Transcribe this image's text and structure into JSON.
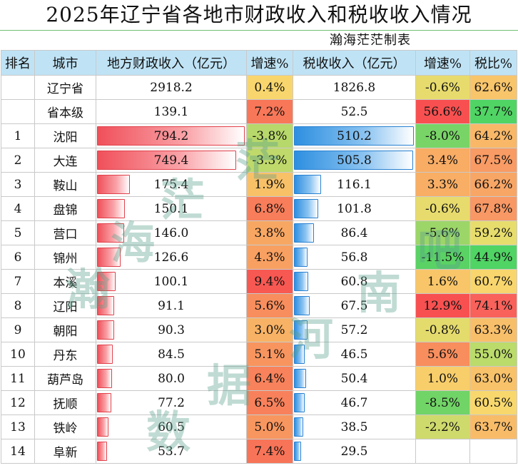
{
  "title": "2025年辽宁省各地市财政收入和税收收入情况",
  "author": "瀚海茫茫制表",
  "headers": [
    "排名",
    "城市",
    "地方财政收入（亿元）",
    "增速%",
    "税收收入（亿元）",
    "增速%",
    "税比%"
  ],
  "rows": [
    {
      "rank": "",
      "city": "辽宁省",
      "revenue": "2918.2",
      "rev_growth": "0.4%",
      "tax": "1826.8",
      "tax_growth": "-0.6%",
      "tax_ratio": "62.6%",
      "bar": false
    },
    {
      "rank": "",
      "city": "省本级",
      "revenue": "139.1",
      "rev_growth": "7.2%",
      "tax": "52.5",
      "tax_growth": "56.6%",
      "tax_ratio": "37.7%",
      "bar": false
    },
    {
      "rank": "1",
      "city": "沈阳",
      "revenue": "794.2",
      "rev_growth": "-3.8%",
      "tax": "510.2",
      "tax_growth": "-8.0%",
      "tax_ratio": "64.2%",
      "bar": true
    },
    {
      "rank": "2",
      "city": "大连",
      "revenue": "749.4",
      "rev_growth": "-3.3%",
      "tax": "505.8",
      "tax_growth": "3.4%",
      "tax_ratio": "67.5%",
      "bar": true
    },
    {
      "rank": "3",
      "city": "鞍山",
      "revenue": "175.4",
      "rev_growth": "1.9%",
      "tax": "116.1",
      "tax_growth": "3.3%",
      "tax_ratio": "66.2%",
      "bar": true
    },
    {
      "rank": "4",
      "city": "盘锦",
      "revenue": "150.1",
      "rev_growth": "6.8%",
      "tax": "101.8",
      "tax_growth": "-0.6%",
      "tax_ratio": "67.8%",
      "bar": true
    },
    {
      "rank": "5",
      "city": "营口",
      "revenue": "146.0",
      "rev_growth": "3.8%",
      "tax": "86.4",
      "tax_growth": "-5.6%",
      "tax_ratio": "59.2%",
      "bar": true
    },
    {
      "rank": "6",
      "city": "锦州",
      "revenue": "126.6",
      "rev_growth": "4.3%",
      "tax": "56.8",
      "tax_growth": "-11.5%",
      "tax_ratio": "44.9%",
      "bar": true
    },
    {
      "rank": "7",
      "city": "本溪",
      "revenue": "100.1",
      "rev_growth": "9.4%",
      "tax": "60.8",
      "tax_growth": "1.6%",
      "tax_ratio": "60.7%",
      "bar": true
    },
    {
      "rank": "8",
      "city": "辽阳",
      "revenue": "91.1",
      "rev_growth": "5.6%",
      "tax": "67.5",
      "tax_growth": "12.9%",
      "tax_ratio": "74.1%",
      "bar": true
    },
    {
      "rank": "9",
      "city": "朝阳",
      "revenue": "90.3",
      "rev_growth": "3.0%",
      "tax": "57.2",
      "tax_growth": "-0.8%",
      "tax_ratio": "63.3%",
      "bar": true
    },
    {
      "rank": "10",
      "city": "丹东",
      "revenue": "84.5",
      "rev_growth": "5.1%",
      "tax": "46.5",
      "tax_growth": "5.6%",
      "tax_ratio": "55.0%",
      "bar": true
    },
    {
      "rank": "11",
      "city": "葫芦岛",
      "revenue": "80.0",
      "rev_growth": "6.4%",
      "tax": "50.4",
      "tax_growth": "1.0%",
      "tax_ratio": "63.0%",
      "bar": true
    },
    {
      "rank": "12",
      "city": "抚顺",
      "revenue": "77.2",
      "rev_growth": "6.5%",
      "tax": "46.7",
      "tax_growth": "-8.5%",
      "tax_ratio": "60.5%",
      "bar": true
    },
    {
      "rank": "13",
      "city": "铁岭",
      "revenue": "60.5",
      "rev_growth": "5.0%",
      "tax": "38.5",
      "tax_growth": "-2.2%",
      "tax_ratio": "63.7%",
      "bar": true
    },
    {
      "rank": "14",
      "city": "阜新",
      "revenue": "53.7",
      "rev_growth": "7.4%",
      "tax": "29.5",
      "tax_growth": "",
      "tax_ratio": "",
      "bar": true
    }
  ],
  "watermark": [
    "瀚",
    "海",
    "茫",
    "茫",
    "数",
    "据",
    "河",
    "南",
    "吧"
  ]
}
